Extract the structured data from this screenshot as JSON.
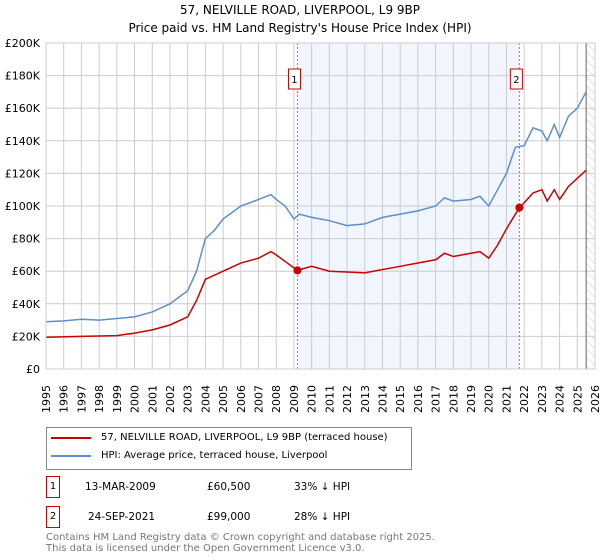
{
  "chart_data": {
    "type": "line",
    "title": "57, NELVILLE ROAD, LIVERPOOL, L9 9BP",
    "subtitle": "Price paid vs. HM Land Registry's House Price Index (HPI)",
    "xlim": [
      1995,
      2026
    ],
    "ylim": [
      0,
      200000
    ],
    "yticks": [
      0,
      20000,
      40000,
      60000,
      80000,
      100000,
      120000,
      140000,
      160000,
      180000,
      200000
    ],
    "ytick_labels": [
      "£0",
      "£20K",
      "£40K",
      "£60K",
      "£80K",
      "£100K",
      "£120K",
      "£140K",
      "£160K",
      "£180K",
      "£200K"
    ],
    "xticks": [
      1995,
      1996,
      1997,
      1998,
      1999,
      2000,
      2001,
      2002,
      2003,
      2004,
      2005,
      2006,
      2007,
      2008,
      2009,
      2010,
      2011,
      2012,
      2013,
      2014,
      2015,
      2016,
      2017,
      2018,
      2019,
      2020,
      2021,
      2022,
      2023,
      2024,
      2025,
      2026
    ],
    "grid": true,
    "shaded_range": [
      2009.2,
      2021.73
    ],
    "forecast_from": 2025.5,
    "series": [
      {
        "name": "57, NELVILLE ROAD, LIVERPOOL, L9 9BP (terraced house)",
        "color": "#cc0000",
        "x": [
          1995,
          1997,
          1999,
          2000,
          2001,
          2002,
          2003,
          2003.5,
          2004,
          2005,
          2006,
          2007,
          2007.7,
          2008,
          2008.5,
          2009.2,
          2010,
          2011,
          2012,
          2013,
          2014,
          2015,
          2016,
          2017,
          2017.5,
          2018,
          2019,
          2019.5,
          2020,
          2020.5,
          2021,
          2021.73,
          2022,
          2022.5,
          2023,
          2023.3,
          2023.7,
          2024,
          2024.5,
          2025,
          2025.5
        ],
        "y": [
          19500,
          20000,
          20500,
          22000,
          24000,
          27000,
          32000,
          42000,
          55000,
          60000,
          65000,
          68000,
          72000,
          70000,
          66000,
          60500,
          63000,
          60000,
          59500,
          59000,
          61000,
          63000,
          65000,
          67000,
          71000,
          69000,
          71000,
          72000,
          68000,
          76000,
          86000,
          99000,
          102000,
          108000,
          110000,
          103000,
          110000,
          104000,
          112000,
          117000,
          122000
        ]
      },
      {
        "name": "HPI: Average price, terraced house, Liverpool",
        "color": "#5b8fd0",
        "x": [
          1995,
          1996,
          1997,
          1998,
          1999,
          2000,
          2001,
          2002,
          2003,
          2003.5,
          2004,
          2004.5,
          2005,
          2006,
          2007,
          2007.7,
          2008,
          2008.5,
          2009,
          2009.3,
          2010,
          2011,
          2012,
          2013,
          2014,
          2015,
          2016,
          2017,
          2017.5,
          2018,
          2019,
          2019.5,
          2020,
          2020.5,
          2021,
          2021.5,
          2022,
          2022.5,
          2023,
          2023.3,
          2023.7,
          2024,
          2024.5,
          2025,
          2025.5
        ],
        "y": [
          29000,
          29500,
          30500,
          30000,
          31000,
          32000,
          35000,
          40000,
          48000,
          60000,
          80000,
          85000,
          92000,
          100000,
          104000,
          107000,
          104000,
          100000,
          92000,
          95000,
          93000,
          91000,
          88000,
          89000,
          93000,
          95000,
          97000,
          100000,
          105000,
          103000,
          104000,
          106000,
          100000,
          110000,
          120000,
          136000,
          137000,
          148000,
          146000,
          140000,
          150000,
          142000,
          155000,
          160000,
          170000
        ]
      }
    ],
    "markers": [
      {
        "label": "1",
        "x": 2009.2,
        "y": 60500
      },
      {
        "label": "2",
        "x": 2021.73,
        "y": 99000
      }
    ]
  },
  "sales": [
    {
      "num": "1",
      "date": "13-MAR-2009",
      "price": "£60,500",
      "hpi": "33% ↓ HPI"
    },
    {
      "num": "2",
      "date": "24-SEP-2021",
      "price": "£99,000",
      "hpi": "28% ↓ HPI"
    }
  ],
  "footer": {
    "line1": "Contains HM Land Registry data © Crown copyright and database right 2025.",
    "line2": "This data is licensed under the Open Government Licence v3.0."
  }
}
